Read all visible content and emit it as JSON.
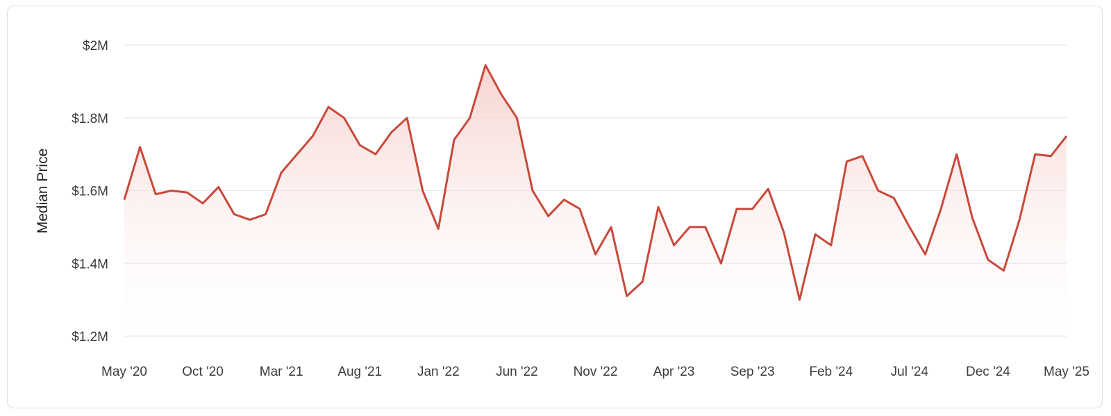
{
  "colors": {
    "line": "#c8493a",
    "fill_top": "#f3c6c1",
    "fill_bottom": "#ffffff",
    "grid": "#e6e6e6"
  },
  "chart_data": {
    "type": "area",
    "title": "",
    "xlabel": "",
    "ylabel": "Median Price",
    "ylim": [
      1200000,
      2000000
    ],
    "y_ticks": [
      {
        "value": 2000000,
        "label": "$2M"
      },
      {
        "value": 1800000,
        "label": "$1.8M"
      },
      {
        "value": 1600000,
        "label": "$1.6M"
      },
      {
        "value": 1400000,
        "label": "$1.4M"
      },
      {
        "value": 1200000,
        "label": "$1.2M"
      }
    ],
    "x_ticks": [
      {
        "index": 0,
        "label": "May '20"
      },
      {
        "index": 5,
        "label": "Oct '20"
      },
      {
        "index": 10,
        "label": "Mar '21"
      },
      {
        "index": 15,
        "label": "Aug '21"
      },
      {
        "index": 20,
        "label": "Jan '22"
      },
      {
        "index": 25,
        "label": "Jun '22"
      },
      {
        "index": 30,
        "label": "Nov '22"
      },
      {
        "index": 35,
        "label": "Apr '23"
      },
      {
        "index": 40,
        "label": "Sep '23"
      },
      {
        "index": 45,
        "label": "Feb '24"
      },
      {
        "index": 50,
        "label": "Jul '24"
      },
      {
        "index": 55,
        "label": "Dec '24"
      },
      {
        "index": 60,
        "label": "May '25"
      }
    ],
    "grid": true,
    "series": [
      {
        "values": [
          1575000,
          1720000,
          1590000,
          1600000,
          1595000,
          1565000,
          1610000,
          1535000,
          1520000,
          1535000,
          1650000,
          1700000,
          1750000,
          1830000,
          1800000,
          1725000,
          1700000,
          1760000,
          1800000,
          1600000,
          1495000,
          1740000,
          1800000,
          1945000,
          1865000,
          1800000,
          1600000,
          1530000,
          1575000,
          1550000,
          1425000,
          1500000,
          1310000,
          1350000,
          1555000,
          1450000,
          1500000,
          1500000,
          1400000,
          1550000,
          1550000,
          1605000,
          1485000,
          1300000,
          1480000,
          1450000,
          1680000,
          1695000,
          1600000,
          1580000,
          1500000,
          1425000,
          1550000,
          1700000,
          1525000,
          1410000,
          1380000,
          1520000,
          1700000,
          1695000,
          1750000
        ]
      }
    ]
  }
}
